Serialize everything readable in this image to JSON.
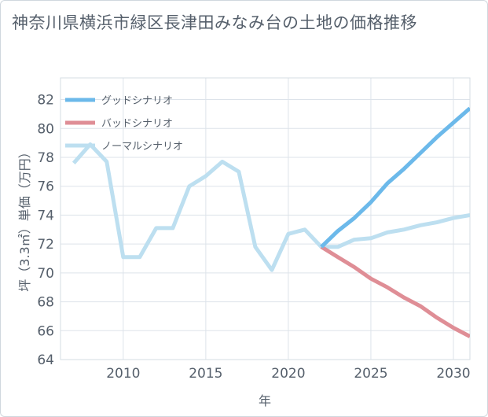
{
  "title": "神奈川県横浜市緑区長津田みなみ台の土地の価格推移",
  "chart_data": {
    "type": "line",
    "title": "神奈川県横浜市緑区長津田みなみ台の土地の価格推移",
    "xlabel": "年",
    "ylabel": "坪（3.3㎡）単価（万円）",
    "xlim": [
      2006.2,
      2031
    ],
    "ylim": [
      64,
      83.5
    ],
    "xticks": [
      2010,
      2015,
      2020,
      2025,
      2030
    ],
    "yticks": [
      64,
      66,
      68,
      70,
      72,
      74,
      76,
      78,
      80,
      82
    ],
    "grid": true,
    "legend_position": "top-left",
    "series": [
      {
        "name": "グッドシナリオ",
        "color": "#6cb9ea",
        "x": [
          2022,
          2023,
          2024,
          2025,
          2026,
          2027,
          2028,
          2029,
          2030,
          2031
        ],
        "y": [
          71.8,
          72.9,
          73.8,
          74.9,
          76.2,
          77.2,
          78.3,
          79.4,
          80.4,
          81.4
        ]
      },
      {
        "name": "バッドシナリオ",
        "color": "#df8e96",
        "x": [
          2022,
          2023,
          2024,
          2025,
          2026,
          2027,
          2028,
          2029,
          2030,
          2031
        ],
        "y": [
          71.8,
          71.1,
          70.4,
          69.6,
          69.0,
          68.3,
          67.7,
          66.9,
          66.2,
          65.6
        ]
      },
      {
        "name": "ノーマルシナリオ",
        "color": "#bddff0",
        "x": [
          2007,
          2008,
          2009,
          2010,
          2011,
          2012,
          2013,
          2014,
          2015,
          2016,
          2017,
          2018,
          2019,
          2020,
          2021,
          2022,
          2023,
          2024,
          2025,
          2026,
          2027,
          2028,
          2029,
          2030,
          2031
        ],
        "y": [
          77.6,
          78.9,
          77.7,
          71.1,
          71.1,
          73.1,
          73.1,
          76.0,
          76.7,
          77.7,
          77.0,
          71.8,
          70.2,
          72.7,
          73.0,
          71.8,
          71.8,
          72.3,
          72.4,
          72.8,
          73.0,
          73.3,
          73.5,
          73.8,
          74.0
        ]
      }
    ]
  }
}
